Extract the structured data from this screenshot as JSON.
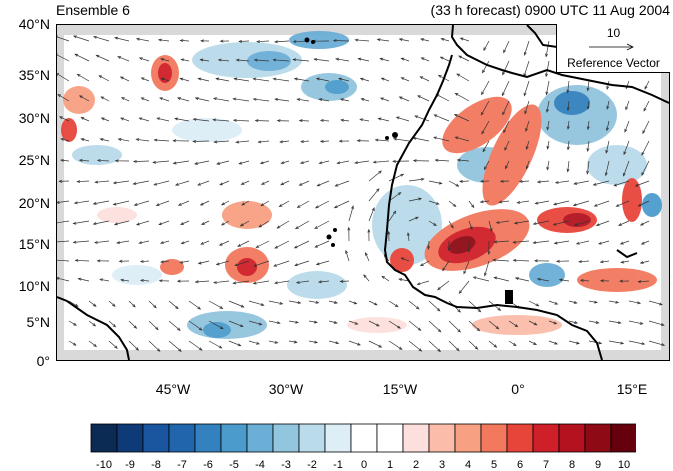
{
  "header": {
    "title_left": "Ensemble 6",
    "title_right": "(33 h forecast) 0900 UTC 11 Aug 2004"
  },
  "axes": {
    "lat_ticks": [
      "40°N",
      "35°N",
      "30°N",
      "25°N",
      "20°N",
      "15°N",
      "10°N",
      "5°N",
      "0°"
    ],
    "lon_ticks": [
      "45°W",
      "30°W",
      "15°W",
      "0°",
      "15°E"
    ]
  },
  "reference_vector": {
    "magnitude": "10",
    "label": "Reference Vector"
  },
  "colorbar": {
    "labels": [
      "-10",
      "-9",
      "-8",
      "-7",
      "-6",
      "-5",
      "-4",
      "-3",
      "-2",
      "-1",
      "0",
      "1",
      "2",
      "3",
      "4",
      "5",
      "6",
      "7",
      "8",
      "9",
      "10"
    ],
    "colors": [
      "#0b2a54",
      "#0f3a78",
      "#1a56a0",
      "#2166ac",
      "#3381be",
      "#4b9bcc",
      "#6baed6",
      "#92c5de",
      "#b9dbea",
      "#ddeef7",
      "#ffffff",
      "#ffffff",
      "#fde0dd",
      "#fbbcaa",
      "#f7a082",
      "#f2785e",
      "#e8453a",
      "#cf1f28",
      "#b3121e",
      "#8e0b16",
      "#67000d"
    ]
  },
  "palette": {
    "land": "#000000",
    "missing": "#d9d9d9"
  }
}
